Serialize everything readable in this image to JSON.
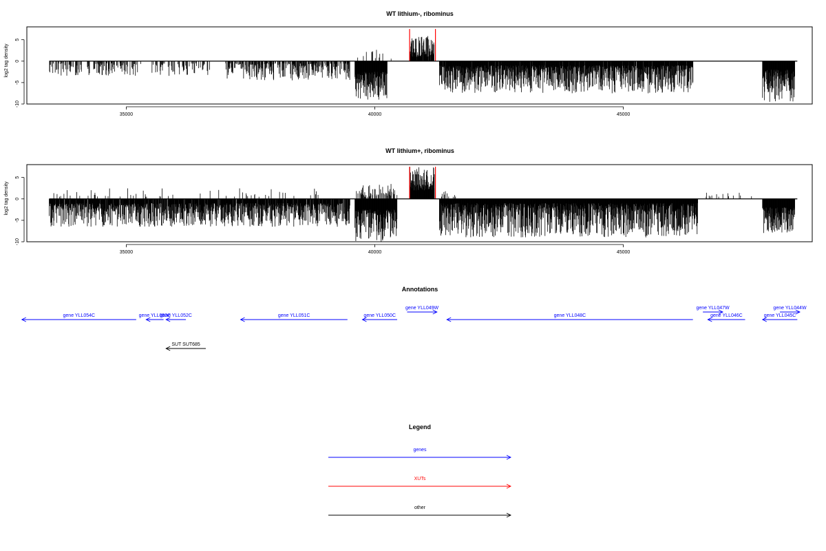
{
  "chart_data": [
    {
      "type": "bar",
      "title": "WT lithium-, ribominus",
      "ylabel": "log2 tag density",
      "xlim": [
        33000,
        48800
      ],
      "ylim": [
        -10,
        8
      ],
      "xticks": [
        "35000",
        "40000",
        "45000"
      ],
      "yticks": [
        "-10",
        "-5",
        "0",
        "5"
      ],
      "baseline": [
        33450,
        48500
      ],
      "profile": [
        {
          "from": 33450,
          "to": 35300,
          "sign": -1,
          "min": 0.5,
          "max": 3.5,
          "density": 0.35
        },
        {
          "from": 35500,
          "to": 36700,
          "sign": -1,
          "min": 0.5,
          "max": 3.5,
          "density": 0.25
        },
        {
          "from": 37000,
          "to": 39500,
          "sign": -1,
          "min": 0.5,
          "max": 4.5,
          "density": 0.5
        },
        {
          "from": 39600,
          "to": 40250,
          "sign": -1,
          "min": 2.5,
          "max": 9.0,
          "density": 1.0
        },
        {
          "from": 39650,
          "to": 40400,
          "sign": 1,
          "min": 0.5,
          "max": 3.0,
          "density": 0.08
        },
        {
          "from": 40700,
          "to": 41200,
          "sign": 1,
          "min": 1.0,
          "max": 6.0,
          "density": 0.9
        },
        {
          "from": 41300,
          "to": 46400,
          "sign": -1,
          "min": 1.0,
          "max": 7.5,
          "density": 0.95
        },
        {
          "from": 47800,
          "to": 48450,
          "sign": -1,
          "min": 2.0,
          "max": 9.5,
          "density": 1.0
        }
      ],
      "highlights": [
        {
          "x": 40700,
          "y": 7.5,
          "color": "#ff0000"
        },
        {
          "x": 41220,
          "y": 7.5,
          "color": "#ff0000"
        }
      ]
    },
    {
      "type": "bar",
      "title": "WT lithium+, ribominus",
      "ylabel": "log2 tag density",
      "xlim": [
        33000,
        48800
      ],
      "ylim": [
        -10,
        8
      ],
      "xticks": [
        "35000",
        "40000",
        "45000"
      ],
      "yticks": [
        "-10",
        "-5",
        "0",
        "5"
      ],
      "baseline": [
        33450,
        48500
      ],
      "profile": [
        {
          "from": 33450,
          "to": 39500,
          "sign": -1,
          "min": 1.0,
          "max": 6.5,
          "density": 0.9
        },
        {
          "from": 33500,
          "to": 39000,
          "sign": 1,
          "min": 0.5,
          "max": 2.5,
          "density": 0.06
        },
        {
          "from": 39600,
          "to": 40450,
          "sign": -1,
          "min": 2.5,
          "max": 10.0,
          "density": 1.0
        },
        {
          "from": 39600,
          "to": 40450,
          "sign": 1,
          "min": 0.5,
          "max": 3.5,
          "density": 0.4
        },
        {
          "from": 40700,
          "to": 41200,
          "sign": 1,
          "min": 2.0,
          "max": 7.5,
          "density": 1.0
        },
        {
          "from": 41300,
          "to": 46500,
          "sign": -1,
          "min": 1.0,
          "max": 9.0,
          "density": 1.0
        },
        {
          "from": 41300,
          "to": 41650,
          "sign": 1,
          "min": 0.5,
          "max": 2.0,
          "density": 0.2
        },
        {
          "from": 46600,
          "to": 47600,
          "sign": 1,
          "min": 0.5,
          "max": 1.5,
          "density": 0.08
        },
        {
          "from": 47800,
          "to": 48450,
          "sign": -1,
          "min": 2.0,
          "max": 8.0,
          "density": 1.0
        }
      ],
      "highlights": [
        {
          "x": 40700,
          "y": 7.5,
          "color": "#ff0000"
        },
        {
          "x": 41220,
          "y": 7.5,
          "color": "#ff0000"
        }
      ]
    }
  ],
  "annotations": {
    "title": "Annotations",
    "genes_color": "#0000ff",
    "other_color": "#000000",
    "features": [
      {
        "label": "gene YLL054C",
        "start": 35200,
        "end": 32900,
        "row": 0,
        "kind": "gene"
      },
      {
        "label": "gene YLL053C",
        "start": 35750,
        "end": 35400,
        "row": 0,
        "kind": "gene"
      },
      {
        "label": "gene YLL052C",
        "start": 36200,
        "end": 35800,
        "row": 0,
        "kind": "gene"
      },
      {
        "label": "gene YLL051C",
        "start": 39450,
        "end": 37300,
        "row": 0,
        "kind": "gene"
      },
      {
        "label": "gene YLL050C",
        "start": 40450,
        "end": 39750,
        "row": 0,
        "kind": "gene"
      },
      {
        "label": "gene YLL049W",
        "start": 40650,
        "end": 41250,
        "row": 1,
        "kind": "gene"
      },
      {
        "label": "gene YLL048C",
        "start": 46400,
        "end": 41450,
        "row": 0,
        "kind": "gene"
      },
      {
        "label": "gene YLL047W",
        "start": 46600,
        "end": 47000,
        "row": 1,
        "kind": "gene"
      },
      {
        "label": "gene YLL046C",
        "start": 47450,
        "end": 46700,
        "row": 0,
        "kind": "gene"
      },
      {
        "label": "gene YLL045C",
        "start": 48500,
        "end": 47800,
        "row": 0,
        "kind": "gene"
      },
      {
        "label": "gene YLL044W",
        "start": 48150,
        "end": 48550,
        "row": 1,
        "kind": "gene"
      },
      {
        "label": "SUT SUT685",
        "start": 36600,
        "end": 35800,
        "row": 2,
        "kind": "other"
      }
    ]
  },
  "legend": {
    "title": "Legend",
    "items": [
      {
        "label": "genes",
        "color": "#0000ff"
      },
      {
        "label": "XUTs",
        "color": "#ff0000"
      },
      {
        "label": "other",
        "color": "#000000"
      }
    ]
  }
}
